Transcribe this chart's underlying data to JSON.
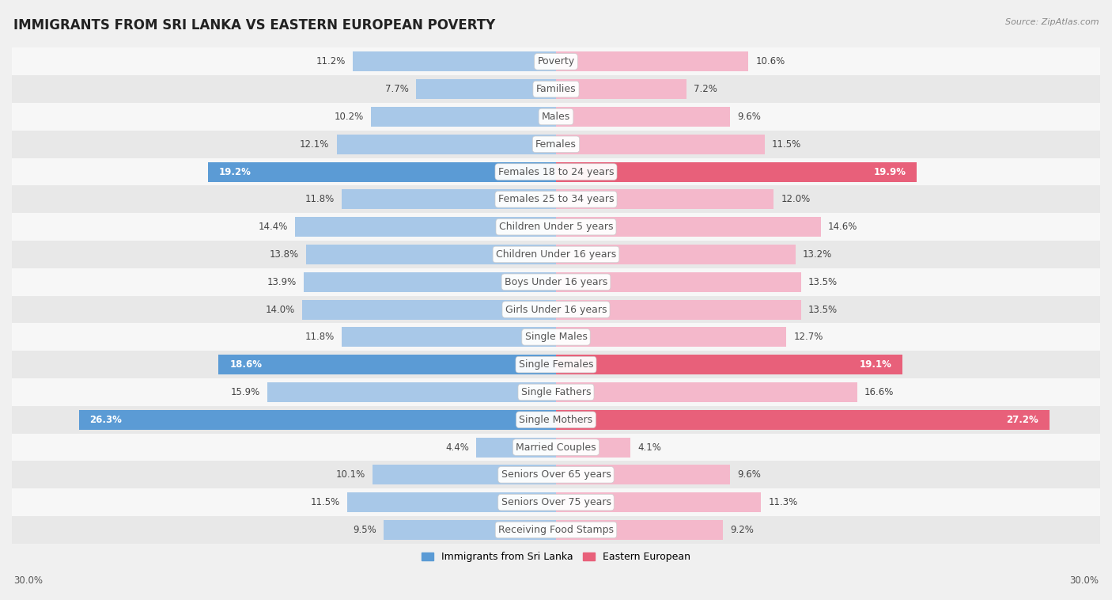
{
  "title": "IMMIGRANTS FROM SRI LANKA VS EASTERN EUROPEAN POVERTY",
  "source": "Source: ZipAtlas.com",
  "categories": [
    "Poverty",
    "Families",
    "Males",
    "Females",
    "Females 18 to 24 years",
    "Females 25 to 34 years",
    "Children Under 5 years",
    "Children Under 16 years",
    "Boys Under 16 years",
    "Girls Under 16 years",
    "Single Males",
    "Single Females",
    "Single Fathers",
    "Single Mothers",
    "Married Couples",
    "Seniors Over 65 years",
    "Seniors Over 75 years",
    "Receiving Food Stamps"
  ],
  "sri_lanka": [
    11.2,
    7.7,
    10.2,
    12.1,
    19.2,
    11.8,
    14.4,
    13.8,
    13.9,
    14.0,
    11.8,
    18.6,
    15.9,
    26.3,
    4.4,
    10.1,
    11.5,
    9.5
  ],
  "eastern_european": [
    10.6,
    7.2,
    9.6,
    11.5,
    19.9,
    12.0,
    14.6,
    13.2,
    13.5,
    13.5,
    12.7,
    19.1,
    16.6,
    27.2,
    4.1,
    9.6,
    11.3,
    9.2
  ],
  "sri_lanka_color": "#a8c8e8",
  "eastern_european_color": "#f4b8cb",
  "sri_lanka_highlight_color": "#5b9bd5",
  "eastern_european_highlight_color": "#e8607a",
  "highlight_rows": [
    4,
    11,
    13
  ],
  "background_color": "#f0f0f0",
  "row_bg_light": "#f7f7f7",
  "row_bg_dark": "#e8e8e8",
  "axis_limit": 30.0,
  "bar_height": 0.72,
  "legend_sri_lanka": "Immigrants from Sri Lanka",
  "legend_eastern_european": "Eastern European",
  "title_fontsize": 12,
  "label_fontsize": 9,
  "value_fontsize": 8.5
}
